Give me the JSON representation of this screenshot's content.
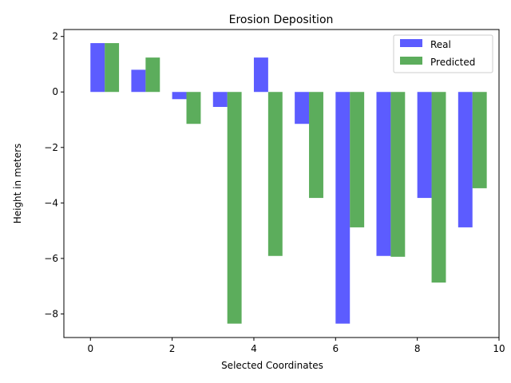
{
  "chart_data": {
    "type": "bar",
    "title": "Erosion Deposition",
    "xlabel": "Selected Coordinates",
    "ylabel": "Height in meters",
    "x": [
      0,
      1,
      2,
      3,
      4,
      5,
      6,
      7,
      8,
      9
    ],
    "xlim": [
      -0.65,
      10.0
    ],
    "ylim": [
      -8.85,
      2.25
    ],
    "x_ticks": [
      0,
      2,
      4,
      6,
      8,
      10
    ],
    "y_ticks": [
      2,
      0,
      -2,
      -4,
      -6,
      -8
    ],
    "x_tick_labels": [
      "0",
      "2",
      "4",
      "6",
      "8",
      "10"
    ],
    "y_tick_labels": [
      "2",
      "0",
      "−2",
      "−4",
      "−6",
      "−8"
    ],
    "grid": false,
    "legend_position": "top-right",
    "series": [
      {
        "name": "Real",
        "color": "#3333ff",
        "values": [
          1.76,
          0.8,
          -0.26,
          -0.54,
          1.24,
          -1.15,
          -8.35,
          -5.91,
          -3.82,
          -4.88
        ]
      },
      {
        "name": "Predicted",
        "color": "#339933",
        "values": [
          1.76,
          1.24,
          -1.15,
          -8.35,
          -5.91,
          -3.82,
          -4.88,
          -5.94,
          -6.87,
          -3.47
        ]
      }
    ]
  }
}
